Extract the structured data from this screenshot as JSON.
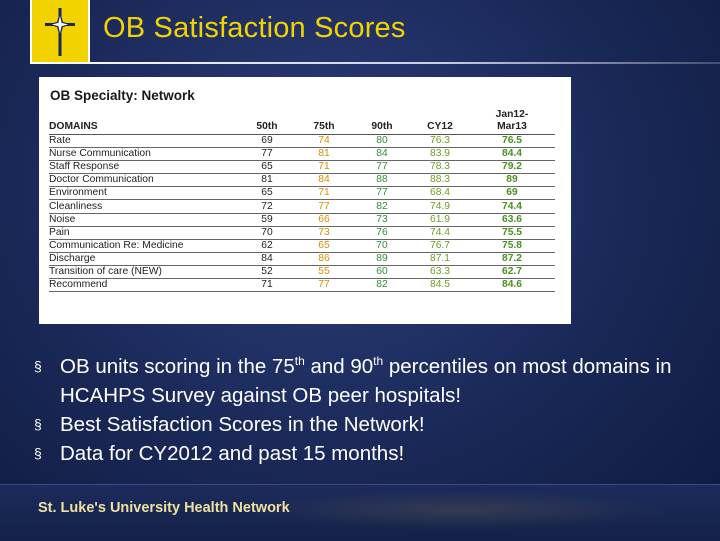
{
  "slide": {
    "title": "OB Satisfaction Scores",
    "colors": {
      "title": "#f2d300",
      "background": "#1a2857",
      "logo": "#f2d300"
    }
  },
  "table": {
    "heading": "OB Specialty:  Network",
    "columns": {
      "domains": "DOMAINS",
      "p50": "50th",
      "p75": "75th",
      "p90": "90th",
      "cy12": "CY12",
      "period_line1": "Jan12-",
      "period_line2": "Mar13"
    },
    "rows": [
      {
        "domain": "Rate",
        "p50": "69",
        "p75": "74",
        "p90": "80",
        "cy12": "76.3",
        "period": "76.5"
      },
      {
        "domain": "Nurse Communication",
        "p50": "77",
        "p75": "81",
        "p90": "84",
        "cy12": "83.9",
        "period": "84.4"
      },
      {
        "domain": "Staff Response",
        "p50": "65",
        "p75": "71",
        "p90": "77",
        "cy12": "78.3",
        "period": "79.2"
      },
      {
        "domain": "Doctor Communication",
        "p50": "81",
        "p75": "84",
        "p90": "88",
        "cy12": "88.3",
        "period": "89"
      },
      {
        "domain": "Environment",
        "p50": "65",
        "p75": "71",
        "p90": "77",
        "cy12": "68.4",
        "period": "69"
      },
      {
        "domain": "Cleanliness",
        "p50": "72",
        "p75": "77",
        "p90": "82",
        "cy12": "74.9",
        "period": "74.4"
      },
      {
        "domain": "Noise",
        "p50": "59",
        "p75": "66",
        "p90": "73",
        "cy12": "61.9",
        "period": "63.6"
      },
      {
        "domain": "Pain",
        "p50": "70",
        "p75": "73",
        "p90": "76",
        "cy12": "74.4",
        "period": "75.5"
      },
      {
        "domain": "Communication  Re: Medicine",
        "p50": "62",
        "p75": "65",
        "p90": "70",
        "cy12": "76.7",
        "period": "75.8"
      },
      {
        "domain": "Discharge",
        "p50": "84",
        "p75": "86",
        "p90": "89",
        "cy12": "87.1",
        "period": "87.2"
      },
      {
        "domain": "Transition of care (NEW)",
        "p50": "52",
        "p75": "55",
        "p90": "60",
        "cy12": "63.3",
        "period": "62.7"
      },
      {
        "domain": "Recommend",
        "p50": "71",
        "p75": "77",
        "p90": "82",
        "cy12": "84.5",
        "period": "84.6"
      }
    ]
  },
  "bullets": {
    "marker": "§",
    "b1_before": "OB units scoring in the 75",
    "b1_sup": "th",
    "b1_mid": " and 90",
    "b1_sup2": "th",
    "b1_after": " percentiles on most domains in HCAHPS Survey against OB peer hospitals!",
    "b2": "Best Satisfaction Scores in the Network!",
    "b3": "Data for CY2012 and past 15 months!"
  },
  "footer": {
    "organization": "St. Luke's University Health Network"
  }
}
